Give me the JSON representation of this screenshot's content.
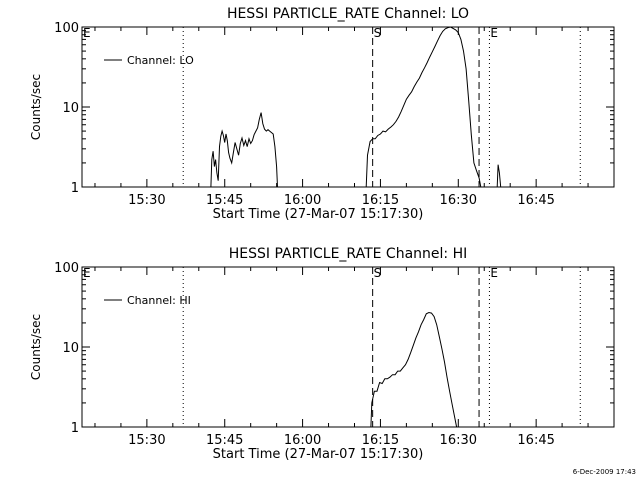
{
  "footer_date": "6-Dec-2009 17:43",
  "chart_data": [
    {
      "type": "line",
      "title": "HESSI PARTICLE_RATE Channel: LO",
      "xlabel": "Start Time (27-Mar-07 15:17:30)",
      "ylabel": "Counts/sec",
      "yscale": "log",
      "xlim": [
        "15:17:30",
        "17:00:00"
      ],
      "ylim": [
        1,
        100
      ],
      "x_ticks": [
        "15:30",
        "15:45",
        "16:00",
        "16:15",
        "16:30",
        "16:45"
      ],
      "y_ticks": [
        "1",
        "10",
        "100"
      ],
      "legend": {
        "position": "top-left",
        "label": "Channel: LO"
      },
      "markers": [
        {
          "label": "E",
          "time": "15:17:30",
          "style": "dotted"
        },
        {
          "label": "",
          "time": "15:37:00",
          "style": "dotted"
        },
        {
          "label": "S",
          "time": "16:13:30",
          "style": "dashed"
        },
        {
          "label": "",
          "time": "16:34:00",
          "style": "dashed"
        },
        {
          "label": "E",
          "time": "16:36:00",
          "style": "dotted"
        },
        {
          "label": "",
          "time": "16:53:30",
          "style": "dotted"
        }
      ],
      "series": [
        {
          "segments": [
            {
              "x": [
                "15:42:20",
                "15:42:30",
                "15:42:45",
                "15:43:00",
                "15:43:15",
                "15:43:30",
                "15:43:45",
                "15:44:00",
                "15:44:15",
                "15:44:30",
                "15:44:45",
                "15:45:00",
                "15:45:15",
                "15:45:30",
                "15:45:45",
                "15:46:00",
                "15:46:20",
                "15:46:40",
                "15:47:00",
                "15:47:20",
                "15:47:40",
                "15:48:00",
                "15:48:20",
                "15:48:40",
                "15:49:00",
                "15:49:20",
                "15:49:40",
                "15:50:00",
                "15:50:20",
                "15:50:40",
                "15:51:00",
                "15:51:20",
                "15:51:40",
                "15:52:00",
                "15:52:20",
                "15:52:40",
                "15:53:00",
                "15:53:20",
                "15:53:40",
                "15:54:00",
                "15:54:20",
                "15:54:40",
                "15:55:00",
                "15:55:10"
              ],
              "y": [
                1,
                2.2,
                2.8,
                1.8,
                2.2,
                1.5,
                1.2,
                3.2,
                4.3,
                5.0,
                4.4,
                3.6,
                4.6,
                3.8,
                2.7,
                2.3,
                2.0,
                2.7,
                3.6,
                3.0,
                2.5,
                3.5,
                4.1,
                3.3,
                3.8,
                3.2,
                4.0,
                3.5,
                3.8,
                4.5,
                5.0,
                5.5,
                7.0,
                8.5,
                6.2,
                5.3,
                5.0,
                5.2,
                5.0,
                4.8,
                4.6,
                3.2,
                1.8,
                1
              ]
            },
            {
              "x": [
                "16:12:15",
                "16:12:30",
                "16:13:00",
                "16:13:30",
                "16:14:00",
                "16:14:30",
                "16:15:00",
                "16:15:30",
                "16:16:00",
                "16:16:30",
                "16:17:00",
                "16:17:30",
                "16:18:00",
                "16:18:30",
                "16:19:00",
                "16:19:30",
                "16:20:00",
                "16:20:30",
                "16:21:00",
                "16:21:30",
                "16:22:00",
                "16:22:30",
                "16:23:00",
                "16:23:30",
                "16:24:00",
                "16:24:30",
                "16:25:00",
                "16:25:30",
                "16:26:00",
                "16:26:30",
                "16:27:00",
                "16:27:30",
                "16:28:00",
                "16:28:30",
                "16:29:00",
                "16:29:30",
                "16:30:00",
                "16:30:30",
                "16:31:00",
                "16:31:30",
                "16:32:00",
                "16:32:30",
                "16:33:00",
                "16:33:30",
                "16:34:00",
                "16:34:20"
              ],
              "y": [
                1,
                2.5,
                3.7,
                4.0,
                4.0,
                4.4,
                4.6,
                5.0,
                4.9,
                5.3,
                5.6,
                6.0,
                6.6,
                7.5,
                8.8,
                10.5,
                12.5,
                14.0,
                15.5,
                18.0,
                20.5,
                23.0,
                27.0,
                31.0,
                36.0,
                42.0,
                49.0,
                57.0,
                67.0,
                78.0,
                88.0,
                95.0,
                98.0,
                100.0,
                96.0,
                92.0,
                85.0,
                70.0,
                50.0,
                30.0,
                12.0,
                4.5,
                2.0,
                1.6,
                1.3,
                1
              ]
            },
            {
              "x": [
                "16:37:30",
                "16:37:40",
                "16:37:55",
                "16:38:10"
              ],
              "y": [
                1,
                1.9,
                1.5,
                1
              ]
            }
          ]
        }
      ]
    },
    {
      "type": "line",
      "title": "HESSI PARTICLE_RATE Channel: HI",
      "xlabel": "Start Time (27-Mar-07 15:17:30)",
      "ylabel": "Counts/sec",
      "yscale": "log",
      "xlim": [
        "15:17:30",
        "17:00:00"
      ],
      "ylim": [
        1,
        100
      ],
      "x_ticks": [
        "15:30",
        "15:45",
        "16:00",
        "16:15",
        "16:30",
        "16:45"
      ],
      "y_ticks": [
        "1",
        "10",
        "100"
      ],
      "legend": {
        "position": "top-left",
        "label": "Channel: HI"
      },
      "markers": [
        {
          "label": "E",
          "time": "15:17:30",
          "style": "dotted"
        },
        {
          "label": "",
          "time": "15:37:00",
          "style": "dotted"
        },
        {
          "label": "S",
          "time": "16:13:30",
          "style": "dashed"
        },
        {
          "label": "",
          "time": "16:34:00",
          "style": "dashed"
        },
        {
          "label": "E",
          "time": "16:36:00",
          "style": "dotted"
        },
        {
          "label": "",
          "time": "16:53:30",
          "style": "dotted"
        }
      ],
      "series": [
        {
          "segments": [
            {
              "x": [
                "16:13:10",
                "16:13:20",
                "16:13:50",
                "16:14:20",
                "16:14:50",
                "16:15:20",
                "16:15:50",
                "16:16:20",
                "16:16:50",
                "16:17:20",
                "16:17:50",
                "16:18:20",
                "16:18:50",
                "16:19:20",
                "16:19:50",
                "16:20:20",
                "16:20:50",
                "16:21:20",
                "16:21:50",
                "16:22:20",
                "16:22:50",
                "16:23:20",
                "16:23:50",
                "16:24:20",
                "16:24:50",
                "16:25:20",
                "16:25:50",
                "16:26:20",
                "16:26:50",
                "16:27:20",
                "16:27:50",
                "16:28:20",
                "16:28:50",
                "16:29:20",
                "16:29:40"
              ],
              "y": [
                1,
                2.0,
                2.8,
                2.8,
                3.6,
                3.5,
                4.0,
                4.0,
                4.2,
                4.5,
                4.5,
                5.0,
                5.0,
                5.5,
                6.0,
                7.0,
                8.5,
                10.5,
                13.0,
                15.5,
                19.0,
                22.0,
                26.0,
                27.0,
                26.5,
                24.0,
                19.0,
                13.5,
                9.5,
                6.5,
                4.2,
                2.8,
                1.9,
                1.3,
                1
              ]
            }
          ]
        }
      ]
    }
  ]
}
